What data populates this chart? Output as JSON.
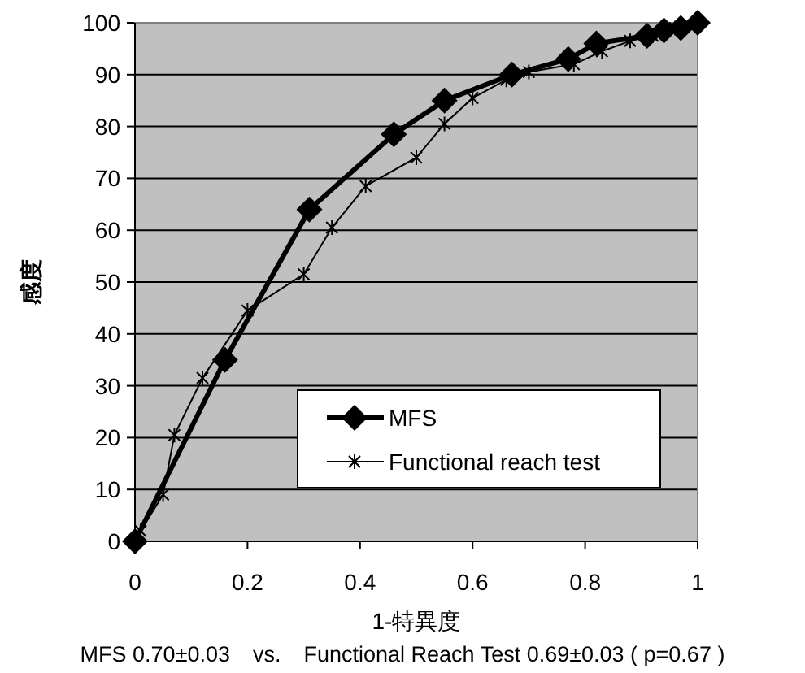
{
  "chart_data": {
    "type": "line",
    "xlabel": "1-特異度",
    "ylabel": "感度",
    "annotations": [
      "MFS 0.70±0.03　vs.　Functional Reach Test 0.69±0.03 ( p=0.67 )"
    ],
    "xlim": [
      0,
      1
    ],
    "ylim": [
      0,
      100
    ],
    "xticks": [
      0,
      0.2,
      0.4,
      0.6,
      0.8,
      1
    ],
    "yticks": [
      0,
      10,
      20,
      30,
      40,
      50,
      60,
      70,
      80,
      90,
      100
    ],
    "grid": "y",
    "legend": "bottom right",
    "line_style": "solid",
    "series": [
      {
        "name": "MFS",
        "color": "#000000",
        "marker": "diamond",
        "x": [
          0,
          0.16,
          0.31,
          0.46,
          0.55,
          0.67,
          0.77,
          0.82,
          0.91,
          0.94,
          0.97,
          1
        ],
        "values": [
          0,
          35,
          64,
          78.5,
          85,
          90,
          93,
          96,
          97.5,
          98.5,
          99,
          100
        ]
      },
      {
        "name": "Functional reach test",
        "color": "#000000",
        "marker": "cross",
        "x": [
          0,
          0.01,
          0.05,
          0.07,
          0.12,
          0.2,
          0.3,
          0.35,
          0.41,
          0.5,
          0.55,
          0.6,
          0.66,
          0.7,
          0.78,
          0.83,
          0.88,
          0.92,
          0.96,
          1
        ],
        "values": [
          0,
          2,
          9,
          20.5,
          31.5,
          44.5,
          51.5,
          60.5,
          68.5,
          74,
          80.5,
          85.5,
          89,
          90.5,
          92,
          94.5,
          96.5,
          97.5,
          99,
          100
        ]
      }
    ]
  }
}
